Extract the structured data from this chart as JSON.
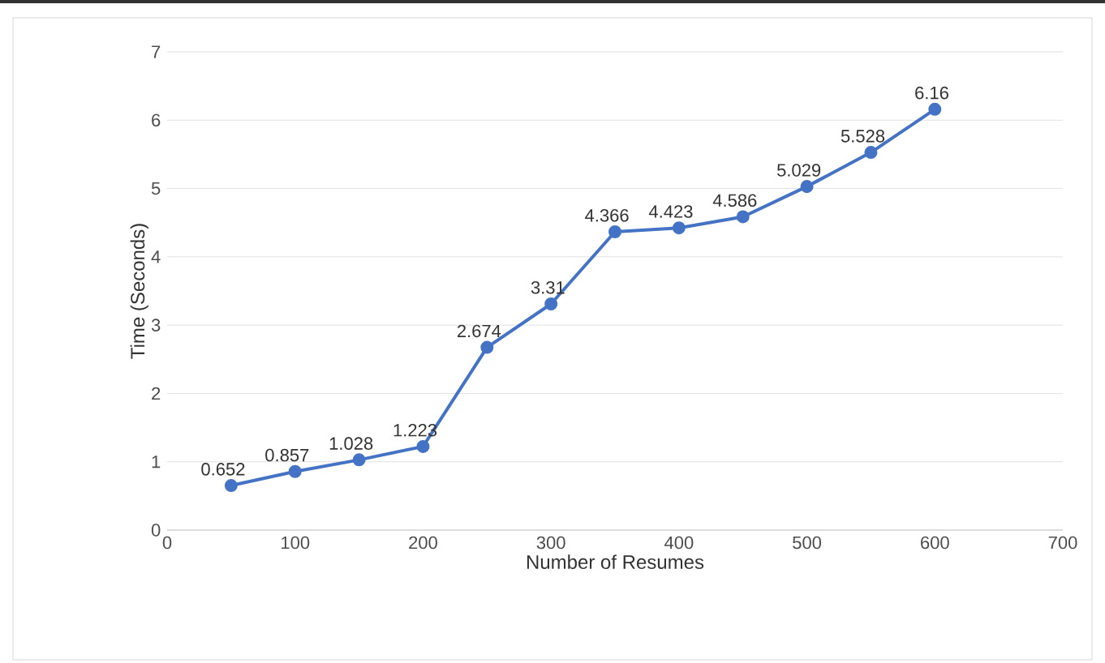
{
  "chart_data": {
    "type": "line",
    "xlabel": "Number of Resumes",
    "ylabel": "Time (Seconds)",
    "x": [
      50,
      100,
      150,
      200,
      250,
      300,
      350,
      400,
      450,
      500,
      550,
      600
    ],
    "values": [
      0.652,
      0.857,
      1.028,
      1.223,
      2.674,
      3.31,
      4.366,
      4.423,
      4.586,
      5.029,
      5.528,
      6.16
    ],
    "color": "#4472c4",
    "marker": "circle",
    "line_style": "solid",
    "data_labels": true,
    "grid": "y",
    "xlim": [
      0,
      700
    ],
    "xticks": [
      0,
      100,
      200,
      300,
      400,
      500,
      600,
      700
    ],
    "ylim": [
      0,
      7
    ],
    "yticks": [
      0,
      1,
      2,
      3,
      4,
      5,
      6,
      7
    ]
  }
}
